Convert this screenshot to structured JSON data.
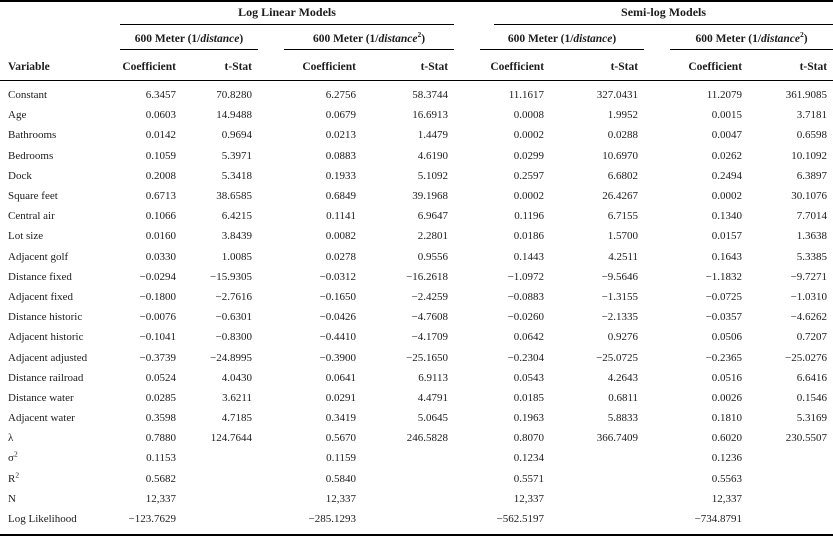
{
  "page": {
    "background": "#ffffff",
    "text_color": "#1c1c1c",
    "rule_color": "#000000"
  },
  "table": {
    "group_headers": [
      {
        "label": "Log Linear Models"
      },
      {
        "label": "Semi-log Models"
      }
    ],
    "model_headers": [
      {
        "prefix": "600 Meter (1/",
        "term": "distance",
        "sup": "",
        "suffix": ")"
      },
      {
        "prefix": "600 Meter (1/",
        "term": "distance",
        "sup": "2",
        "suffix": ")"
      },
      {
        "prefix": "600 Meter (1/",
        "term": "distance",
        "sup": "",
        "suffix": ")"
      },
      {
        "prefix": "600 Meter (1/",
        "term": "distance",
        "sup": "2",
        "suffix": ")"
      }
    ],
    "column_headers": {
      "variable": "Variable",
      "coefficient": "Coefficient",
      "tstat": "t-Stat"
    },
    "rows": [
      {
        "label": "Constant",
        "sup": "",
        "values": [
          "6.3457",
          "70.8280",
          "6.2756",
          "58.3744",
          "11.1617",
          "327.0431",
          "11.2079",
          "361.9085"
        ]
      },
      {
        "label": "Age",
        "sup": "",
        "values": [
          "0.0603",
          "14.9488",
          "0.0679",
          "16.6913",
          "0.0008",
          "1.9952",
          "0.0015",
          "3.7181"
        ]
      },
      {
        "label": "Bathrooms",
        "sup": "",
        "values": [
          "0.0142",
          "0.9694",
          "0.0213",
          "1.4479",
          "0.0002",
          "0.0288",
          "0.0047",
          "0.6598"
        ]
      },
      {
        "label": "Bedrooms",
        "sup": "",
        "values": [
          "0.1059",
          "5.3971",
          "0.0883",
          "4.6190",
          "0.0299",
          "10.6970",
          "0.0262",
          "10.1092"
        ]
      },
      {
        "label": "Dock",
        "sup": "",
        "values": [
          "0.2008",
          "5.3418",
          "0.1933",
          "5.1092",
          "0.2597",
          "6.6802",
          "0.2494",
          "6.3897"
        ]
      },
      {
        "label": "Square feet",
        "sup": "",
        "values": [
          "0.6713",
          "38.6585",
          "0.6849",
          "39.1968",
          "0.0002",
          "26.4267",
          "0.0002",
          "30.1076"
        ]
      },
      {
        "label": "Central air",
        "sup": "",
        "values": [
          "0.1066",
          "6.4215",
          "0.1141",
          "6.9647",
          "0.1196",
          "6.7155",
          "0.1340",
          "7.7014"
        ]
      },
      {
        "label": "Lot size",
        "sup": "",
        "values": [
          "0.0160",
          "3.8439",
          "0.0082",
          "2.2801",
          "0.0186",
          "1.5700",
          "0.0157",
          "1.3638"
        ]
      },
      {
        "label": "Adjacent golf",
        "sup": "",
        "values": [
          "0.0330",
          "1.0085",
          "0.0278",
          "0.9556",
          "0.1443",
          "4.2511",
          "0.1643",
          "5.3385"
        ]
      },
      {
        "label": "Distance fixed",
        "sup": "",
        "values": [
          "−0.0294",
          "−15.9305",
          "−0.0312",
          "−16.2618",
          "−1.0972",
          "−9.5646",
          "−1.1832",
          "−9.7271"
        ]
      },
      {
        "label": "Adjacent fixed",
        "sup": "",
        "values": [
          "−0.1800",
          "−2.7616",
          "−0.1650",
          "−2.4259",
          "−0.0883",
          "−1.3155",
          "−0.0725",
          "−1.0310"
        ]
      },
      {
        "label": "Distance historic",
        "sup": "",
        "values": [
          "−0.0076",
          "−0.6301",
          "−0.0426",
          "−4.7608",
          "−0.0260",
          "−2.1335",
          "−0.0357",
          "−4.6262"
        ]
      },
      {
        "label": "Adjacent historic",
        "sup": "",
        "values": [
          "−0.1041",
          "−0.8300",
          "−0.4410",
          "−4.1709",
          "0.0642",
          "0.9276",
          "0.0506",
          "0.7207"
        ]
      },
      {
        "label": "Adjacent adjusted",
        "sup": "",
        "values": [
          "−0.3739",
          "−24.8995",
          "−0.3900",
          "−25.1650",
          "−0.2304",
          "−25.0725",
          "−0.2365",
          "−25.0276"
        ]
      },
      {
        "label": "Distance railroad",
        "sup": "",
        "values": [
          "0.0524",
          "4.0430",
          "0.0641",
          "6.9113",
          "0.0543",
          "4.2643",
          "0.0516",
          "6.6416"
        ]
      },
      {
        "label": "Distance water",
        "sup": "",
        "values": [
          "0.0285",
          "3.6211",
          "0.0291",
          "4.4791",
          "0.0185",
          "0.6811",
          "0.0026",
          "0.1546"
        ]
      },
      {
        "label": "Adjacent water",
        "sup": "",
        "values": [
          "0.3598",
          "4.7185",
          "0.3419",
          "5.0645",
          "0.1963",
          "5.8833",
          "0.1810",
          "5.3169"
        ]
      },
      {
        "label": "λ",
        "sup": "",
        "values": [
          "0.7880",
          "124.7644",
          "0.5670",
          "246.5828",
          "0.8070",
          "366.7409",
          "0.6020",
          "230.5507"
        ]
      },
      {
        "label": "σ",
        "sup": "2",
        "values": [
          "0.1153",
          "",
          "0.1159",
          "",
          "0.1234",
          "",
          "0.1236",
          ""
        ]
      },
      {
        "label": "R",
        "sup": "2",
        "values": [
          "0.5682",
          "",
          "0.5840",
          "",
          "0.5571",
          "",
          "0.5563",
          ""
        ]
      },
      {
        "label": "N",
        "sup": "",
        "values": [
          "12,337",
          "",
          "12,337",
          "",
          "12,337",
          "",
          "12,337",
          ""
        ]
      },
      {
        "label": "Log Likelihood",
        "sup": "",
        "values": [
          "−123.7629",
          "",
          "−285.1293",
          "",
          "−562.5197",
          "",
          "−734.8791",
          ""
        ]
      }
    ]
  }
}
